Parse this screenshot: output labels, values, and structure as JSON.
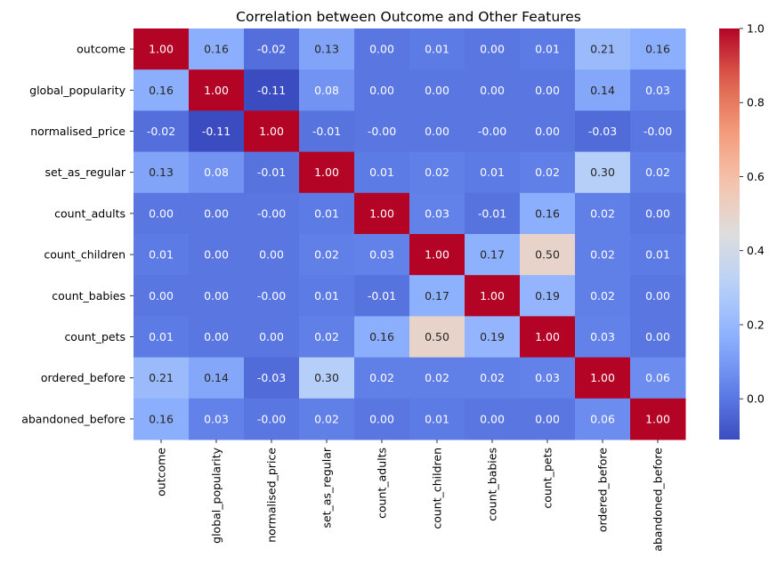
{
  "chart_data": {
    "type": "heatmap",
    "title": "Correlation between Outcome and Other Features",
    "xlabel": "",
    "ylabel": "",
    "colormap": "coolwarm",
    "annotation_format": "0.00",
    "x_labels": [
      "outcome",
      "global_popularity",
      "normalised_price",
      "set_as_regular",
      "count_adults",
      "count_children",
      "count_babies",
      "count_pets",
      "ordered_before",
      "abandoned_before"
    ],
    "y_labels": [
      "outcome",
      "global_popularity",
      "normalised_price",
      "set_as_regular",
      "count_adults",
      "count_children",
      "count_babies",
      "count_pets",
      "ordered_before",
      "abandoned_before"
    ],
    "values": [
      [
        1.0,
        0.16,
        -0.02,
        0.13,
        0.0,
        0.01,
        0.0,
        0.01,
        0.21,
        0.16
      ],
      [
        0.16,
        1.0,
        -0.11,
        0.08,
        0.0,
        0.0,
        0.0,
        0.0,
        0.14,
        0.03
      ],
      [
        -0.02,
        -0.11,
        1.0,
        -0.01,
        -0.001,
        0.0,
        -0.001,
        0.0,
        -0.03,
        -0.001
      ],
      [
        0.13,
        0.08,
        -0.01,
        1.0,
        0.01,
        0.02,
        0.01,
        0.02,
        0.3,
        0.02
      ],
      [
        0.0,
        0.0,
        -0.001,
        0.01,
        1.0,
        0.03,
        -0.01,
        0.16,
        0.02,
        0.0
      ],
      [
        0.01,
        0.0,
        0.0,
        0.02,
        0.03,
        1.0,
        0.17,
        0.5,
        0.02,
        0.01
      ],
      [
        0.0,
        0.0,
        -0.001,
        0.01,
        -0.01,
        0.17,
        1.0,
        0.19,
        0.02,
        0.0
      ],
      [
        0.01,
        0.0,
        0.0,
        0.02,
        0.16,
        0.5,
        0.19,
        1.0,
        0.03,
        0.0
      ],
      [
        0.21,
        0.14,
        -0.03,
        0.3,
        0.02,
        0.02,
        0.02,
        0.03,
        1.0,
        0.06
      ],
      [
        0.16,
        0.03,
        -0.001,
        0.02,
        0.0,
        0.01,
        0.0,
        0.0,
        0.06,
        1.0
      ]
    ],
    "color_range": [
      -0.11,
      1.0
    ],
    "colorbar_ticks": [
      0.0,
      0.2,
      0.4,
      0.6,
      0.8,
      1.0
    ],
    "colorbar_tick_labels": [
      "0.0",
      "0.2",
      "0.4",
      "0.6",
      "0.8",
      "1.0"
    ],
    "grid": false,
    "legend": "colorbar-right"
  }
}
